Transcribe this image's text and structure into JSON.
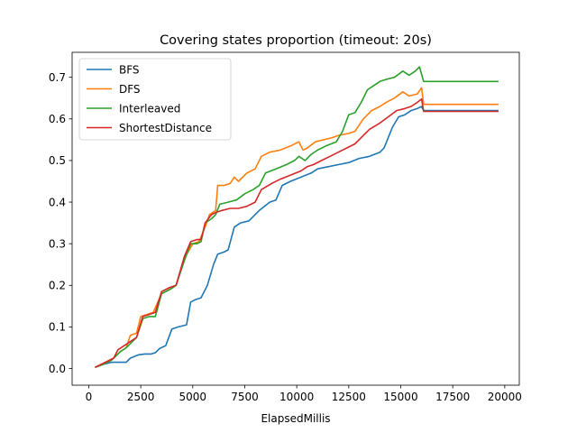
{
  "chart_data": {
    "type": "line",
    "title": "Covering states proportion (timeout: 20s)",
    "xlabel": "ElapsedMillis",
    "ylabel": "",
    "xlim": [
      -800,
      20700
    ],
    "ylim": [
      -0.04,
      0.76
    ],
    "xticks": [
      0,
      2500,
      5000,
      7500,
      10000,
      12500,
      15000,
      17500,
      20000
    ],
    "yticks": [
      0.0,
      0.1,
      0.2,
      0.3,
      0.4,
      0.5,
      0.6,
      0.7
    ],
    "grid": false,
    "legend_position": "top-left",
    "series": [
      {
        "name": "BFS",
        "color": "#1f77b4",
        "points": [
          [
            300,
            0.003
          ],
          [
            700,
            0.01
          ],
          [
            1100,
            0.015
          ],
          [
            1500,
            0.015
          ],
          [
            1800,
            0.015
          ],
          [
            2000,
            0.025
          ],
          [
            2400,
            0.033
          ],
          [
            2700,
            0.035
          ],
          [
            3000,
            0.035
          ],
          [
            3200,
            0.038
          ],
          [
            3400,
            0.048
          ],
          [
            3700,
            0.055
          ],
          [
            4000,
            0.095
          ],
          [
            4300,
            0.1
          ],
          [
            4700,
            0.105
          ],
          [
            4900,
            0.16
          ],
          [
            5100,
            0.165
          ],
          [
            5400,
            0.17
          ],
          [
            5700,
            0.2
          ],
          [
            6000,
            0.25
          ],
          [
            6200,
            0.275
          ],
          [
            6500,
            0.28
          ],
          [
            6700,
            0.285
          ],
          [
            7000,
            0.34
          ],
          [
            7300,
            0.35
          ],
          [
            7700,
            0.355
          ],
          [
            8200,
            0.38
          ],
          [
            8700,
            0.4
          ],
          [
            9000,
            0.405
          ],
          [
            9300,
            0.44
          ],
          [
            9700,
            0.45
          ],
          [
            10200,
            0.46
          ],
          [
            10700,
            0.47
          ],
          [
            11000,
            0.48
          ],
          [
            11500,
            0.485
          ],
          [
            12000,
            0.49
          ],
          [
            12500,
            0.495
          ],
          [
            13000,
            0.505
          ],
          [
            13500,
            0.51
          ],
          [
            14000,
            0.52
          ],
          [
            14200,
            0.53
          ],
          [
            14600,
            0.58
          ],
          [
            14900,
            0.605
          ],
          [
            15200,
            0.61
          ],
          [
            15500,
            0.62
          ],
          [
            15800,
            0.625
          ],
          [
            16000,
            0.63
          ],
          [
            16100,
            0.62
          ],
          [
            17000,
            0.62
          ],
          [
            18000,
            0.62
          ],
          [
            19700,
            0.62
          ]
        ]
      },
      {
        "name": "DFS",
        "color": "#ff7f0e",
        "points": [
          [
            300,
            0.003
          ],
          [
            800,
            0.015
          ],
          [
            1200,
            0.025
          ],
          [
            1500,
            0.04
          ],
          [
            1800,
            0.05
          ],
          [
            2000,
            0.08
          ],
          [
            2300,
            0.085
          ],
          [
            2500,
            0.125
          ],
          [
            2800,
            0.13
          ],
          [
            3100,
            0.135
          ],
          [
            3500,
            0.18
          ],
          [
            3900,
            0.19
          ],
          [
            4200,
            0.2
          ],
          [
            4600,
            0.265
          ],
          [
            5000,
            0.3
          ],
          [
            5300,
            0.305
          ],
          [
            5600,
            0.34
          ],
          [
            5800,
            0.37
          ],
          [
            6100,
            0.38
          ],
          [
            6200,
            0.44
          ],
          [
            6500,
            0.44
          ],
          [
            6800,
            0.445
          ],
          [
            7000,
            0.46
          ],
          [
            7200,
            0.45
          ],
          [
            7600,
            0.47
          ],
          [
            8000,
            0.48
          ],
          [
            8300,
            0.51
          ],
          [
            8700,
            0.52
          ],
          [
            9200,
            0.525
          ],
          [
            9700,
            0.535
          ],
          [
            10100,
            0.545
          ],
          [
            10300,
            0.525
          ],
          [
            10500,
            0.53
          ],
          [
            10900,
            0.545
          ],
          [
            11300,
            0.55
          ],
          [
            11700,
            0.555
          ],
          [
            12000,
            0.56
          ],
          [
            12500,
            0.565
          ],
          [
            12800,
            0.57
          ],
          [
            13200,
            0.6
          ],
          [
            13600,
            0.62
          ],
          [
            14000,
            0.63
          ],
          [
            14300,
            0.64
          ],
          [
            14700,
            0.65
          ],
          [
            15100,
            0.665
          ],
          [
            15400,
            0.655
          ],
          [
            15800,
            0.66
          ],
          [
            16000,
            0.675
          ],
          [
            16100,
            0.635
          ],
          [
            17000,
            0.635
          ],
          [
            18000,
            0.635
          ],
          [
            19700,
            0.635
          ]
        ]
      },
      {
        "name": "Interleaved",
        "color": "#2ca02c",
        "points": [
          [
            300,
            0.003
          ],
          [
            700,
            0.01
          ],
          [
            1100,
            0.02
          ],
          [
            1500,
            0.04
          ],
          [
            1800,
            0.05
          ],
          [
            2000,
            0.06
          ],
          [
            2300,
            0.075
          ],
          [
            2600,
            0.12
          ],
          [
            2900,
            0.125
          ],
          [
            3200,
            0.125
          ],
          [
            3500,
            0.18
          ],
          [
            3900,
            0.19
          ],
          [
            4200,
            0.2
          ],
          [
            4600,
            0.26
          ],
          [
            4900,
            0.3
          ],
          [
            5200,
            0.3
          ],
          [
            5400,
            0.305
          ],
          [
            5600,
            0.35
          ],
          [
            5900,
            0.36
          ],
          [
            6100,
            0.37
          ],
          [
            6300,
            0.395
          ],
          [
            6700,
            0.4
          ],
          [
            7100,
            0.405
          ],
          [
            7500,
            0.42
          ],
          [
            7900,
            0.43
          ],
          [
            8200,
            0.44
          ],
          [
            8500,
            0.47
          ],
          [
            9000,
            0.48
          ],
          [
            9500,
            0.49
          ],
          [
            9900,
            0.5
          ],
          [
            10100,
            0.51
          ],
          [
            10400,
            0.5
          ],
          [
            10700,
            0.515
          ],
          [
            11000,
            0.525
          ],
          [
            11400,
            0.535
          ],
          [
            11900,
            0.545
          ],
          [
            12200,
            0.57
          ],
          [
            12500,
            0.61
          ],
          [
            12800,
            0.615
          ],
          [
            13100,
            0.64
          ],
          [
            13400,
            0.67
          ],
          [
            13700,
            0.68
          ],
          [
            14000,
            0.69
          ],
          [
            14300,
            0.695
          ],
          [
            14700,
            0.7
          ],
          [
            15100,
            0.715
          ],
          [
            15400,
            0.705
          ],
          [
            15700,
            0.715
          ],
          [
            15900,
            0.725
          ],
          [
            16100,
            0.69
          ],
          [
            17000,
            0.69
          ],
          [
            18000,
            0.69
          ],
          [
            19700,
            0.69
          ]
        ]
      },
      {
        "name": "ShortestDistance",
        "color": "#d62728",
        "points": [
          [
            300,
            0.003
          ],
          [
            800,
            0.015
          ],
          [
            1200,
            0.025
          ],
          [
            1400,
            0.045
          ],
          [
            1700,
            0.055
          ],
          [
            2000,
            0.065
          ],
          [
            2300,
            0.075
          ],
          [
            2600,
            0.125
          ],
          [
            2900,
            0.13
          ],
          [
            3200,
            0.135
          ],
          [
            3500,
            0.185
          ],
          [
            3900,
            0.195
          ],
          [
            4200,
            0.2
          ],
          [
            4600,
            0.27
          ],
          [
            4900,
            0.305
          ],
          [
            5200,
            0.31
          ],
          [
            5400,
            0.31
          ],
          [
            5600,
            0.35
          ],
          [
            5900,
            0.37
          ],
          [
            6100,
            0.375
          ],
          [
            6400,
            0.38
          ],
          [
            6800,
            0.385
          ],
          [
            7200,
            0.385
          ],
          [
            7600,
            0.39
          ],
          [
            8000,
            0.4
          ],
          [
            8300,
            0.43
          ],
          [
            8800,
            0.445
          ],
          [
            9200,
            0.455
          ],
          [
            9700,
            0.465
          ],
          [
            10200,
            0.475
          ],
          [
            10500,
            0.485
          ],
          [
            10800,
            0.49
          ],
          [
            11200,
            0.5
          ],
          [
            11600,
            0.51
          ],
          [
            12000,
            0.52
          ],
          [
            12400,
            0.53
          ],
          [
            12800,
            0.54
          ],
          [
            13200,
            0.56
          ],
          [
            13500,
            0.575
          ],
          [
            14000,
            0.59
          ],
          [
            14400,
            0.605
          ],
          [
            14800,
            0.62
          ],
          [
            15200,
            0.625
          ],
          [
            15500,
            0.63
          ],
          [
            15800,
            0.64
          ],
          [
            16000,
            0.648
          ],
          [
            16100,
            0.618
          ],
          [
            17000,
            0.618
          ],
          [
            18000,
            0.618
          ],
          [
            19700,
            0.618
          ]
        ]
      }
    ]
  }
}
